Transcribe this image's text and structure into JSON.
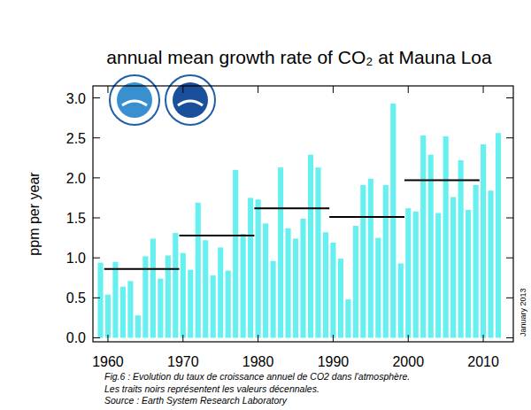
{
  "chart_data": {
    "type": "bar",
    "title": "annual mean growth rate of CO₂ at Mauna Loa",
    "y_label": "ppm per year",
    "date_note": "January 2013",
    "caption": [
      "Fig.6 : Evolution du taux de croissance annuel de CO2 dans l'atmosphère.",
      "Les traits noirs représentent les valeurs décennales.",
      "Source : Earth System Research Laboratory"
    ],
    "x": [
      1959,
      1960,
      1961,
      1962,
      1963,
      1964,
      1965,
      1966,
      1967,
      1968,
      1969,
      1970,
      1971,
      1972,
      1973,
      1974,
      1975,
      1976,
      1977,
      1978,
      1979,
      1980,
      1981,
      1982,
      1983,
      1984,
      1985,
      1986,
      1987,
      1988,
      1989,
      1990,
      1991,
      1992,
      1993,
      1994,
      1995,
      1996,
      1997,
      1998,
      1999,
      2000,
      2001,
      2002,
      2003,
      2004,
      2005,
      2006,
      2007,
      2008,
      2009,
      2010,
      2011,
      2012
    ],
    "values": [
      0.94,
      0.54,
      0.95,
      0.64,
      0.71,
      0.28,
      1.02,
      1.24,
      0.74,
      1.03,
      1.31,
      1.06,
      0.85,
      1.69,
      1.22,
      0.78,
      1.13,
      0.84,
      2.1,
      1.3,
      1.75,
      1.73,
      1.43,
      0.96,
      2.13,
      1.37,
      1.24,
      1.49,
      2.29,
      2.13,
      1.32,
      1.19,
      0.99,
      0.48,
      1.4,
      1.91,
      1.99,
      1.25,
      1.91,
      2.93,
      0.93,
      1.62,
      1.58,
      2.53,
      2.29,
      1.56,
      2.52,
      1.76,
      2.22,
      1.6,
      1.91,
      2.42,
      1.84,
      2.56
    ],
    "color": "#66f0f0",
    "decadal_means": {
      "x_start": [
        1959.5,
        1969.5,
        1979.5,
        1989.5,
        1999.5
      ],
      "x_end": [
        1969.5,
        1979.5,
        1989.5,
        1999.5,
        2009.5
      ],
      "values": [
        0.86,
        1.28,
        1.62,
        1.51,
        1.97
      ],
      "color": "#000000"
    },
    "xlim": [
      1958,
      2014
    ],
    "xticks": [
      1960,
      1970,
      1980,
      1990,
      2000,
      2010
    ],
    "ylim": [
      -0.05,
      3.15
    ],
    "yticks": [
      {
        "value": 0,
        "label": "0.0"
      },
      {
        "value": 0.5,
        "label": "0.5"
      },
      {
        "value": 1,
        "label": "1.0"
      },
      {
        "value": 1.5,
        "label": "1.5"
      },
      {
        "value": 2,
        "label": "2.0"
      },
      {
        "value": 2.5,
        "label": "2.5"
      },
      {
        "value": 3,
        "label": "3.0"
      }
    ],
    "grid": false
  }
}
